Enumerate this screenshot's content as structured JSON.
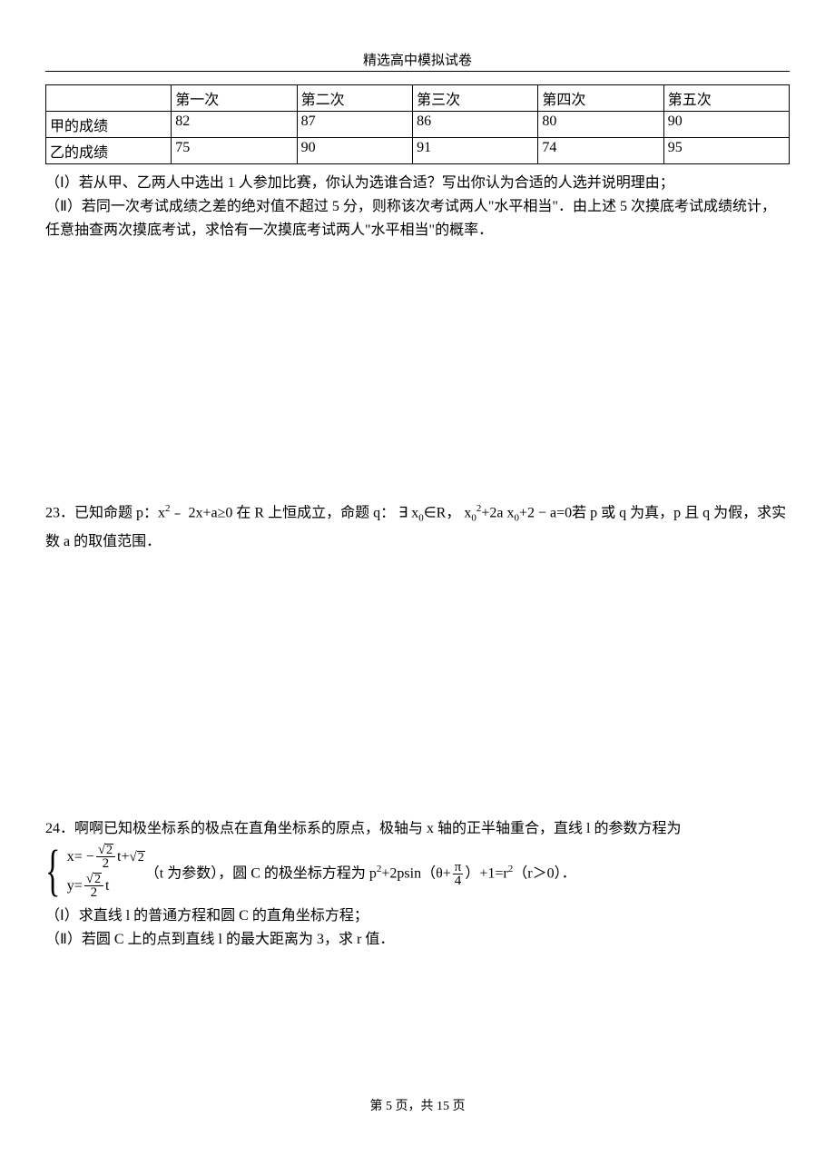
{
  "header": {
    "title": "精选高中模拟试卷"
  },
  "table": {
    "columns": [
      "",
      "第一次",
      "第二次",
      "第三次",
      "第四次",
      "第五次"
    ],
    "rows": [
      [
        "甲的成绩",
        "82",
        "87",
        "86",
        "80",
        "90"
      ],
      [
        "乙的成绩",
        "75",
        "90",
        "91",
        "74",
        "95"
      ]
    ]
  },
  "q_intro": {
    "line1": "（Ⅰ）若从甲、乙两人中选出 1 人参加比赛，你认为选谁合适？写出你认为合适的人选并说明理由；",
    "line2": "（Ⅱ）若同一次考试成绩之差的绝对值不超过 5 分，则称该次考试两人\"水平相当\"．由上述 5 次摸底考试成绩统计，任意抽查两次摸底考试，求恰有一次摸底考试两人\"水平相当\"的概率．"
  },
  "q23": {
    "prefix": "23．已知命题 p：x",
    "sup1": "2",
    "mid1": "﹣ 2x+a≥0 在 R 上恒成立，命题 q：",
    "exists": " ∃ x",
    "sub0a": "0",
    "in": "∈R，  x",
    "sub0b": "0",
    "sup2": "2",
    "plus2a": "+2a x",
    "sub0c": "0",
    "plus2min": "+2 − a=0",
    "tail": "若 p 或 q 为真，p 且 q 为假，求实数 a 的取值范围．"
  },
  "q24": {
    "line1": "24．啊啊已知极坐标系的极点在直角坐标系的原点，极轴与 x 轴的正半轴重合，直线 l 的参数方程为",
    "eq1_x": "x= −",
    "eq1_t1": "t+",
    "eq2_y": "y=",
    "eq2_t": "t",
    "after_param": "（t 为参数），圆 C 的极坐标方程为 p",
    "sup_p2": "2",
    "plus2psin": "+2psin（θ+",
    "pi": "π",
    "four": "4",
    "close_paren": "）+1=r",
    "sup_r2": "2",
    "r_cond": "（r＞0）．",
    "part1": "（Ⅰ）求直线 l 的普通方程和圆 C 的直角坐标方程；",
    "part2": "（Ⅱ）若圆 C 上的点到直线 l 的最大距离为 3，求 r 值．",
    "sqrt2": "2",
    "two": "2"
  },
  "footer": {
    "prefix": "第 ",
    "page": "5",
    "mid": " 页，共 ",
    "total": "15",
    "suffix": " 页"
  }
}
